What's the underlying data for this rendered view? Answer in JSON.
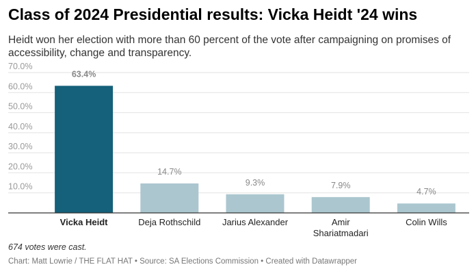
{
  "header": {
    "title": "Class of 2024 Presidential results: Vicka Heidt '24 wins",
    "subtitle": "Heidt won her election with more than 60 percent of the vote after campaigning on promises of accessibility, change and transparency."
  },
  "note": "674 votes were cast.",
  "footer": "Chart: Matt Lowrie / THE FLAT HAT • Source: SA Elections Commission • Created with Datawrapper",
  "colors": {
    "highlight": "#15607a",
    "default": "#abc6cf",
    "grid": "#e2e2e2",
    "baseline": "#333333"
  },
  "chart_data": {
    "type": "bar",
    "title": "Class of 2024 Presidential results: Vicka Heidt '24 wins",
    "xlabel": "",
    "ylabel": "",
    "categories": [
      "Vicka Heidt",
      "Deja Rothschild",
      "Jarius Alexander",
      "Amir Shariatmadari",
      "Colin Wills"
    ],
    "category_lines": [
      [
        "Vicka Heidt"
      ],
      [
        "Deja Rothschild"
      ],
      [
        "Jarius Alexander"
      ],
      [
        "Amir",
        "Shariatmadari"
      ],
      [
        "Colin Wills"
      ]
    ],
    "values": [
      63.4,
      14.7,
      9.3,
      7.9,
      4.7
    ],
    "value_labels": [
      "63.4%",
      "14.7%",
      "9.3%",
      "7.9%",
      "4.7%"
    ],
    "highlighted": [
      "Vicka Heidt"
    ],
    "ylim": [
      0,
      70
    ],
    "yticks": [
      10,
      20,
      30,
      40,
      50,
      60,
      70
    ],
    "ytick_labels": [
      "10.0%",
      "20.0%",
      "30.0%",
      "40.0%",
      "50.0%",
      "60.0%",
      "70.0%"
    ],
    "grid": true,
    "legend": "none"
  }
}
